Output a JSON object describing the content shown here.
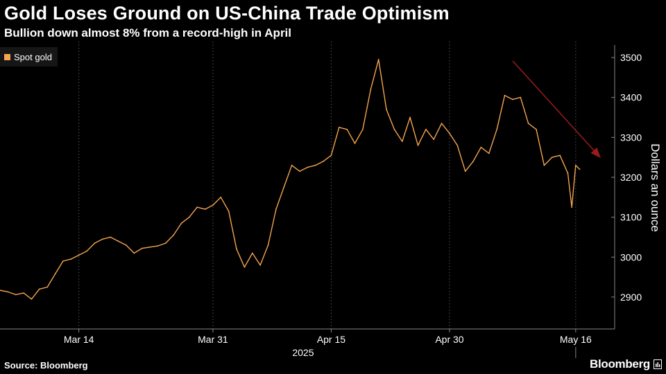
{
  "header": {
    "title": "Gold Loses Ground on US-China Trade Optimism",
    "subtitle": "Bullion down almost 8% from a record-high in April"
  },
  "footer": {
    "source": "Source: Bloomberg",
    "brand": "Bloomberg",
    "brand_icon": "bloomberg-terminal-icon"
  },
  "colors": {
    "background": "#000000",
    "line": "#f5a54f",
    "grid": "#555555",
    "arrow": "#9b1c1c",
    "text": "#ffffff"
  },
  "chart_data": {
    "type": "line",
    "title": "Gold Loses Ground on US-China Trade Optimism",
    "subtitle": "Bullion down almost 8% from a record-high in April",
    "ylabel": "Dollars an ounce",
    "xlabel": "",
    "year_label": "2025",
    "legend": {
      "entries": [
        "Spot gold"
      ],
      "placement": "top-left"
    },
    "x_ticks": [
      "Mar 14",
      "Mar 31",
      "Apr 15",
      "Apr 30",
      "May 16"
    ],
    "x_tick_days": [
      14,
      31,
      46,
      61,
      77
    ],
    "y_ticks": [
      2900,
      3000,
      3100,
      3200,
      3300,
      3400,
      3500
    ],
    "ylim": [
      2820,
      3540
    ],
    "xlim_days": [
      4,
      81.5
    ],
    "grid": "vertical dotted lines at x ticks",
    "annotation": "downward arrow from early-May peak toward mid-May",
    "series": [
      {
        "name": "Spot gold",
        "x_day": [
          4,
          5,
          6,
          7,
          8,
          9,
          10,
          11,
          12,
          13,
          14,
          15,
          16,
          17,
          18,
          19,
          20,
          21,
          22,
          23,
          24,
          25,
          26,
          27,
          28,
          29,
          30,
          31,
          32,
          33,
          34,
          35,
          36,
          37,
          38,
          39,
          40,
          41,
          42,
          43,
          44,
          45,
          46,
          47,
          48,
          49,
          50,
          51,
          52,
          53,
          54,
          55,
          56,
          57,
          58,
          59,
          60,
          61,
          62,
          63,
          64,
          65,
          66,
          67,
          68,
          69,
          70,
          71,
          72,
          73,
          74,
          75,
          76,
          76.5,
          77,
          77.5
        ],
        "values": [
          2917,
          2913,
          2906,
          2910,
          2895,
          2920,
          2925,
          2958,
          2990,
          2995,
          3005,
          3015,
          3035,
          3045,
          3050,
          3040,
          3030,
          3010,
          3022,
          3025,
          3028,
          3035,
          3055,
          3085,
          3100,
          3125,
          3120,
          3130,
          3150,
          3115,
          3020,
          2975,
          3010,
          2980,
          3030,
          3120,
          3175,
          3230,
          3215,
          3225,
          3230,
          3240,
          3255,
          3325,
          3320,
          3285,
          3320,
          3420,
          3495,
          3370,
          3320,
          3290,
          3350,
          3280,
          3320,
          3295,
          3335,
          3310,
          3280,
          3215,
          3240,
          3275,
          3260,
          3320,
          3405,
          3395,
          3400,
          3335,
          3320,
          3230,
          3250,
          3255,
          3210,
          3125,
          3230,
          3220
        ]
      }
    ]
  }
}
